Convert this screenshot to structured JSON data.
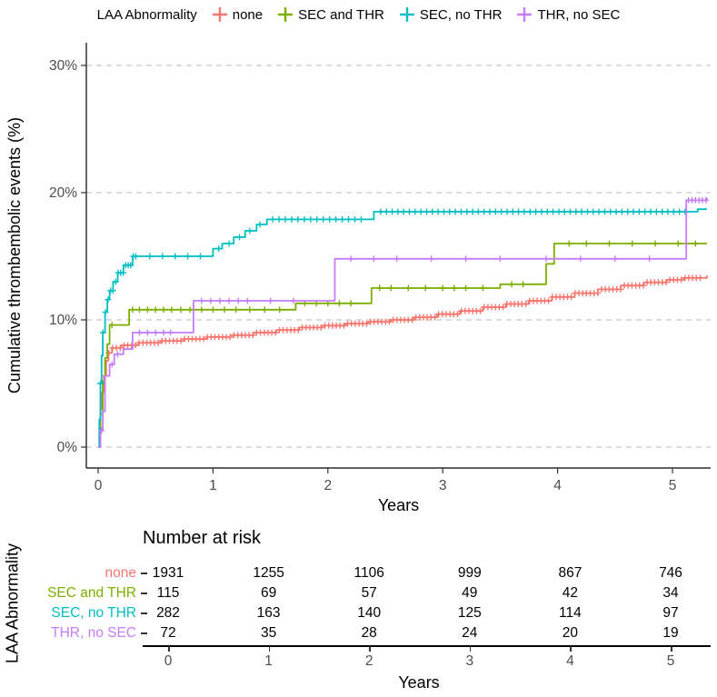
{
  "legend": {
    "title": "LAA Abnormality",
    "items": [
      {
        "label": "none",
        "color": "#F8766D"
      },
      {
        "label": "SEC and THR",
        "color": "#7CAE00"
      },
      {
        "label": "SEC, no THR",
        "color": "#00BFC4"
      },
      {
        "label": "THR, no SEC",
        "color": "#C77CFF"
      }
    ]
  },
  "chart_data": {
    "type": "line",
    "subtype": "kaplan-meier-cumulative-incidence-step-curves-with-censor-marks",
    "title": "",
    "xlabel": "Years",
    "ylabel": "Cumulative thrombembolic events (%)",
    "xlim": [
      0,
      5.3
    ],
    "ylim": [
      0,
      32
    ],
    "xticks": [
      0,
      1,
      2,
      3,
      4,
      5
    ],
    "yticks": [
      0,
      10,
      20,
      30
    ],
    "ytick_labels": [
      "0%",
      "10%",
      "20%",
      "30%"
    ],
    "grid": "dashed-horizontal",
    "legend_position": "top",
    "series": [
      {
        "name": "none",
        "color": "#F8766D",
        "step_points": [
          [
            0,
            0
          ],
          [
            0.01,
            1.5
          ],
          [
            0.02,
            3
          ],
          [
            0.03,
            4.3
          ],
          [
            0.05,
            5.6
          ],
          [
            0.07,
            6.8
          ],
          [
            0.09,
            7.4
          ],
          [
            0.12,
            7.8
          ],
          [
            0.2,
            8.0
          ],
          [
            0.35,
            8.2
          ],
          [
            0.55,
            8.35
          ],
          [
            0.75,
            8.5
          ],
          [
            0.95,
            8.65
          ],
          [
            1.15,
            8.8
          ],
          [
            1.35,
            9.0
          ],
          [
            1.55,
            9.2
          ],
          [
            1.75,
            9.4
          ],
          [
            1.95,
            9.55
          ],
          [
            2.15,
            9.7
          ],
          [
            2.35,
            9.85
          ],
          [
            2.55,
            10.0
          ],
          [
            2.75,
            10.2
          ],
          [
            2.95,
            10.45
          ],
          [
            3.15,
            10.7
          ],
          [
            3.35,
            11.0
          ],
          [
            3.55,
            11.25
          ],
          [
            3.75,
            11.5
          ],
          [
            3.95,
            11.8
          ],
          [
            4.15,
            12.1
          ],
          [
            4.35,
            12.4
          ],
          [
            4.55,
            12.7
          ],
          [
            4.75,
            12.95
          ],
          [
            4.95,
            13.15
          ],
          [
            5.1,
            13.3
          ],
          [
            5.3,
            13.5
          ]
        ],
        "censor_ranges": [
          {
            "from": 0.06,
            "to": 5.27,
            "step": 0.033
          }
        ],
        "censor_x": []
      },
      {
        "name": "SEC and THR",
        "color": "#7CAE00",
        "step_points": [
          [
            0,
            0
          ],
          [
            0.02,
            2.6
          ],
          [
            0.04,
            5.2
          ],
          [
            0.06,
            7.0
          ],
          [
            0.08,
            8.1
          ],
          [
            0.1,
            9.6
          ],
          [
            0.24,
            9.6
          ],
          [
            0.27,
            10.8
          ],
          [
            1.68,
            10.8
          ],
          [
            1.72,
            11.3
          ],
          [
            2.33,
            11.3
          ],
          [
            2.38,
            12.5
          ],
          [
            3.45,
            12.5
          ],
          [
            3.5,
            12.8
          ],
          [
            3.86,
            12.8
          ],
          [
            3.9,
            14.4
          ],
          [
            3.97,
            16.0
          ],
          [
            5.3,
            16.0
          ]
        ],
        "censor_ranges": [],
        "censor_x": [
          0.12,
          0.3,
          0.36,
          0.43,
          0.5,
          0.57,
          0.64,
          0.72,
          0.8,
          0.9,
          1.0,
          1.1,
          1.2,
          1.32,
          1.45,
          1.58,
          1.8,
          1.9,
          2.0,
          2.1,
          2.2,
          2.45,
          2.55,
          2.7,
          2.85,
          3.0,
          3.1,
          3.2,
          3.35,
          3.6,
          3.7,
          4.1,
          4.25,
          4.45,
          4.65,
          4.85,
          5.05,
          5.2
        ]
      },
      {
        "name": "SEC, no THR",
        "color": "#00BFC4",
        "step_points": [
          [
            0,
            0
          ],
          [
            0.01,
            2.2
          ],
          [
            0.02,
            5.0
          ],
          [
            0.03,
            7.2
          ],
          [
            0.04,
            9.0
          ],
          [
            0.06,
            10.6
          ],
          [
            0.08,
            11.6
          ],
          [
            0.1,
            12.3
          ],
          [
            0.13,
            13.0
          ],
          [
            0.17,
            13.7
          ],
          [
            0.22,
            14.3
          ],
          [
            0.3,
            15.0
          ],
          [
            0.95,
            15.0
          ],
          [
            1.0,
            15.6
          ],
          [
            1.08,
            16.0
          ],
          [
            1.18,
            16.5
          ],
          [
            1.28,
            17.0
          ],
          [
            1.38,
            17.5
          ],
          [
            1.47,
            17.9
          ],
          [
            2.33,
            17.9
          ],
          [
            2.4,
            18.5
          ],
          [
            5.18,
            18.5
          ],
          [
            5.22,
            18.7
          ],
          [
            5.3,
            18.7
          ]
        ],
        "censor_ranges": [
          {
            "from": 0.02,
            "to": 0.33,
            "step": 0.022
          },
          {
            "from": 0.45,
            "to": 0.95,
            "step": 0.11
          },
          {
            "from": 1.05,
            "to": 1.45,
            "step": 0.09
          },
          {
            "from": 1.52,
            "to": 2.3,
            "step": 0.055
          },
          {
            "from": 2.46,
            "to": 5.14,
            "step": 0.05
          }
        ],
        "censor_x": []
      },
      {
        "name": "THR, no SEC",
        "color": "#C77CFF",
        "step_points": [
          [
            0,
            0
          ],
          [
            0.02,
            1.3
          ],
          [
            0.04,
            2.8
          ],
          [
            0.06,
            5.6
          ],
          [
            0.1,
            6.5
          ],
          [
            0.14,
            7.3
          ],
          [
            0.22,
            7.7
          ],
          [
            0.3,
            9.0
          ],
          [
            0.79,
            9.0
          ],
          [
            0.83,
            11.5
          ],
          [
            2.01,
            11.5
          ],
          [
            2.06,
            14.8
          ],
          [
            5.06,
            14.8
          ],
          [
            5.12,
            19.4
          ],
          [
            5.3,
            19.6
          ]
        ],
        "censor_ranges": [],
        "censor_x": [
          0.03,
          0.12,
          0.17,
          0.36,
          0.43,
          0.5,
          0.57,
          0.63,
          0.9,
          0.98,
          1.06,
          1.14,
          1.22,
          1.3,
          1.5,
          1.7,
          2.2,
          2.4,
          2.6,
          2.9,
          3.2,
          3.5,
          3.9,
          4.2,
          4.5,
          4.8,
          5.14,
          5.17,
          5.2,
          5.23,
          5.26,
          5.29
        ]
      }
    ]
  },
  "risk_table": {
    "title": "Number at risk",
    "ylabel": "LAA Abnormality",
    "xlabel": "Years",
    "xticks": [
      "0",
      "1",
      "2",
      "3",
      "4",
      "5"
    ],
    "rows": [
      {
        "label": "none",
        "color": "#F8766D",
        "values": [
          "1931",
          "1255",
          "1106",
          "999",
          "867",
          "746"
        ]
      },
      {
        "label": "SEC and THR",
        "color": "#7CAE00",
        "values": [
          "115",
          "69",
          "57",
          "49",
          "42",
          "34"
        ]
      },
      {
        "label": "SEC, no THR",
        "color": "#00BFC4",
        "values": [
          "282",
          "163",
          "140",
          "125",
          "114",
          "97"
        ]
      },
      {
        "label": "THR, no SEC",
        "color": "#C77CFF",
        "values": [
          "72",
          "35",
          "28",
          "24",
          "20",
          "19"
        ]
      }
    ]
  }
}
